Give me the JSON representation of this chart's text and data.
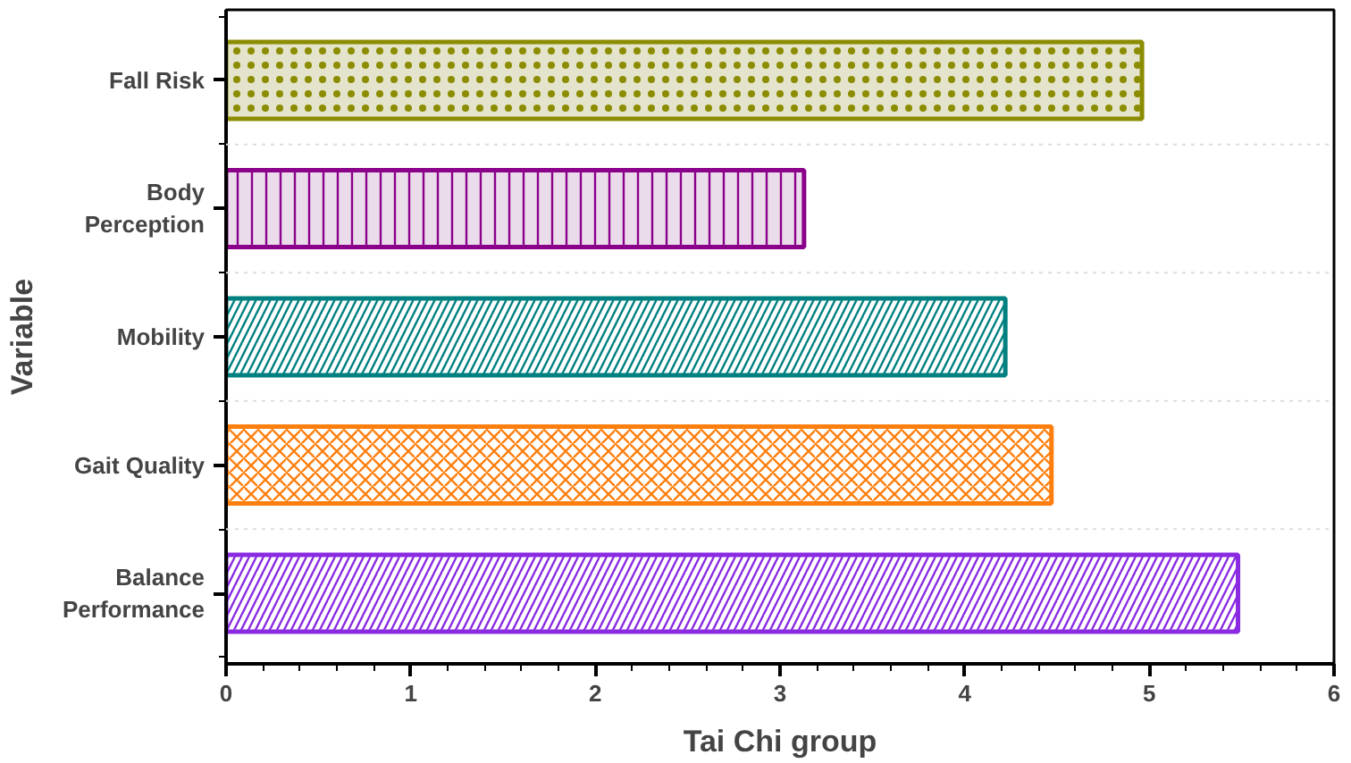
{
  "chart_data": {
    "type": "bar",
    "orientation": "horizontal",
    "xlabel": "Tai Chi group",
    "ylabel": "Variable",
    "categories": [
      "Fall Risk",
      "Body Perception",
      "Mobility",
      "Gait Quality",
      "Balance Performance"
    ],
    "values": [
      4.96,
      3.13,
      4.22,
      4.47,
      5.48
    ],
    "colors": [
      "#8c8c00",
      "#8b008b",
      "#008080",
      "#ff7f0e",
      "#8a2be2"
    ],
    "xlim": [
      0,
      6
    ],
    "xticks": [
      0,
      1,
      2,
      3,
      4,
      5,
      6
    ],
    "grid": "y"
  }
}
